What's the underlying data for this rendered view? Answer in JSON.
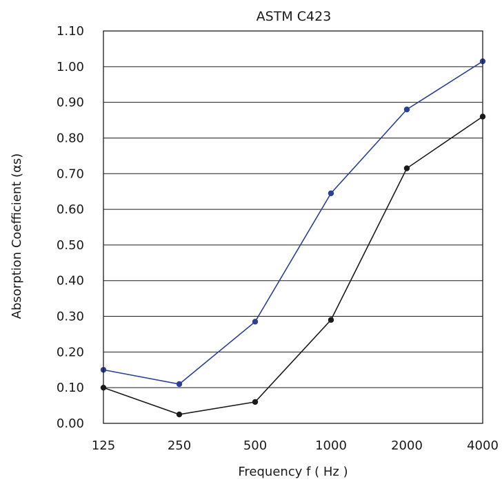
{
  "chart_data": {
    "type": "line",
    "title": "ASTM C423",
    "xlabel": "Frequency f  ( Hz )",
    "ylabel": "Absorption Coefficient (αs)",
    "categories": [
      "125",
      "250",
      "500",
      "1000",
      "2000",
      "4000"
    ],
    "y_ticks": [
      "0.00",
      "0.10",
      "0.20",
      "0.30",
      "0.40",
      "0.50",
      "0.60",
      "0.70",
      "0.80",
      "0.90",
      "1.00",
      "1.10"
    ],
    "ylim": [
      0,
      1.1
    ],
    "grid": "horizontal",
    "series": [
      {
        "color": "#2b3f94",
        "values": [
          0.15,
          0.11,
          0.285,
          0.645,
          0.88,
          1.015
        ]
      },
      {
        "color": "#1a1a1a",
        "values": [
          0.1,
          0.025,
          0.06,
          0.29,
          0.715,
          0.86
        ]
      }
    ]
  }
}
